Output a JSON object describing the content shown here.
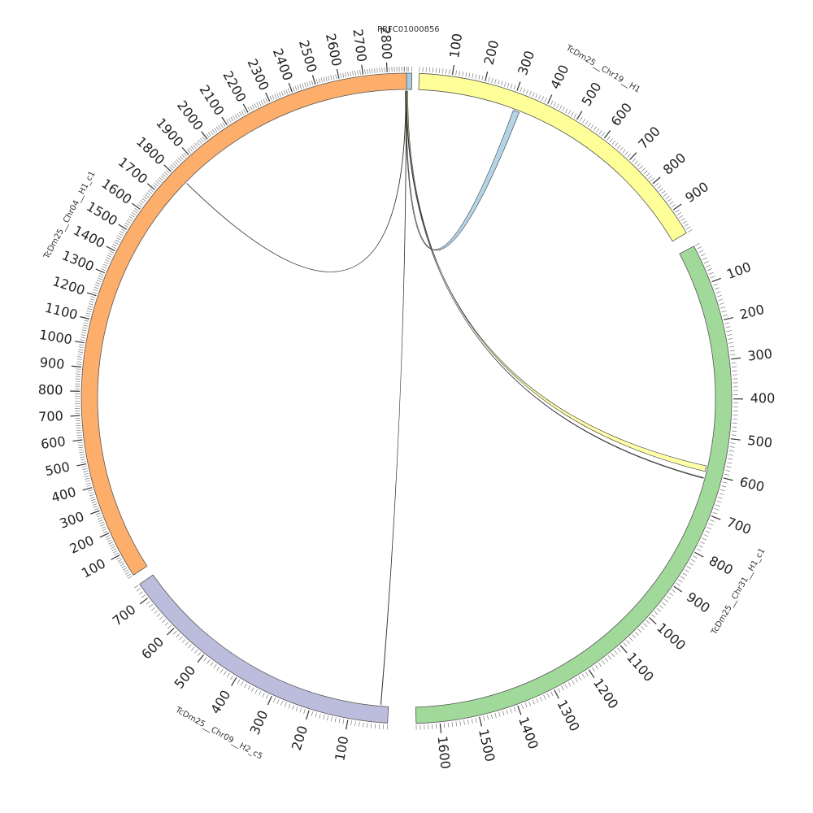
{
  "chart_data": {
    "type": "chord",
    "title": "",
    "segments": [
      {
        "name": "PRFC01000856",
        "length": 20,
        "color": "#a6cee3",
        "ticks": []
      },
      {
        "name": "TcDm25__Chr19__H1",
        "length": 980,
        "color": "#ffff99",
        "ticks": [
          100,
          200,
          300,
          400,
          500,
          600,
          700,
          800,
          900
        ]
      },
      {
        "name": "TcDm25__Chr31__H1_c1",
        "length": 1660,
        "color": "#a1d99b",
        "ticks": [
          100,
          200,
          300,
          400,
          500,
          600,
          700,
          800,
          900,
          1000,
          1100,
          1200,
          1300,
          1400,
          1500,
          1600
        ]
      },
      {
        "name": "TcDm25__Chr09__H2_c5",
        "length": 740,
        "color": "#bcbddc",
        "ticks": [
          100,
          200,
          300,
          400,
          500,
          600,
          700
        ]
      },
      {
        "name": "TcDm25__Chr04__H1_c1",
        "length": 2880,
        "color": "#fdae6b",
        "ticks": [
          100,
          200,
          300,
          400,
          500,
          600,
          700,
          800,
          900,
          1000,
          1100,
          1200,
          1300,
          1400,
          1500,
          1600,
          1700,
          1800,
          1900,
          2000,
          2100,
          2200,
          2300,
          2400,
          2500,
          2600,
          2700,
          2800
        ]
      }
    ],
    "links": [
      {
        "source": "PRFC01000856",
        "source_pos": [
          2,
          4
        ],
        "target": "TcDm25__Chr19__H1",
        "target_pos": [
          310,
          330
        ],
        "color": "#a6cee3"
      },
      {
        "source": "PRFC01000856",
        "source_pos": [
          6,
          9
        ],
        "target": "TcDm25__Chr31__H1_c1",
        "target_pos": [
          580,
          595
        ],
        "color": "#ffff99"
      },
      {
        "source": "PRFC01000856",
        "source_pos": [
          4,
          5
        ],
        "target": "TcDm25__Chr31__H1_c1",
        "target_pos": [
          612,
          614
        ],
        "color": "#4a4a4a"
      },
      {
        "source": "PRFC01000856",
        "source_pos": [
          3,
          4
        ],
        "target": "TcDm25__Chr04__H1_c1",
        "target_pos": [
          1810,
          1811
        ],
        "color": "#8b5a2b"
      },
      {
        "source": "PRFC01000856",
        "source_pos": [
          4,
          5
        ],
        "target": "TcDm25__Chr09__H2_c5",
        "target_pos": [
          20,
          21
        ],
        "color": "#4a4a4a"
      }
    ]
  }
}
